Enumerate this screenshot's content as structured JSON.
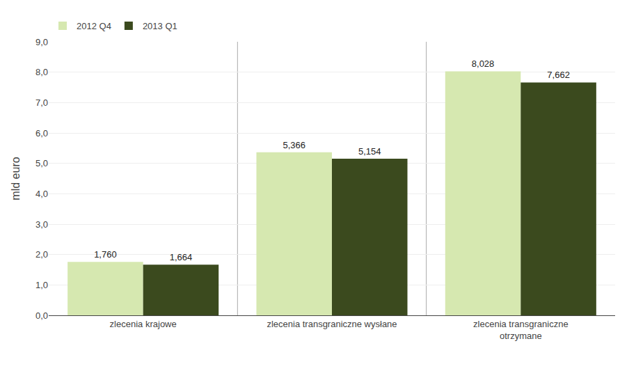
{
  "chart_data": {
    "type": "bar",
    "categories": [
      "zlecenia krajowe",
      "zlecenia transgraniczne wysłane",
      "zlecenia transgraniczne\notrzymane"
    ],
    "series": [
      {
        "name": "2012 Q4",
        "color": "#d6e8b0",
        "values": [
          1.76,
          5.366,
          8.028
        ],
        "value_labels": [
          "1,760",
          "5,366",
          "8,028"
        ]
      },
      {
        "name": "2013 Q1",
        "color": "#3b4a1e",
        "values": [
          1.664,
          5.154,
          7.662
        ],
        "value_labels": [
          "1,664",
          "5,154",
          "7,662"
        ]
      }
    ],
    "ylabel": "mld euro",
    "ylim": [
      0,
      9.0
    ],
    "yticks": [
      {
        "value": 0.0,
        "label": "0,0"
      },
      {
        "value": 1.0,
        "label": "1,0"
      },
      {
        "value": 2.0,
        "label": "2,0"
      },
      {
        "value": 3.0,
        "label": "3,0"
      },
      {
        "value": 4.0,
        "label": "4,0"
      },
      {
        "value": 5.0,
        "label": "5,0"
      },
      {
        "value": 6.0,
        "label": "6,0"
      },
      {
        "value": 7.0,
        "label": "7,0"
      },
      {
        "value": 8.0,
        "label": "8,0"
      },
      {
        "value": 9.0,
        "label": "9,0"
      }
    ],
    "grid": true,
    "legend": "upper left",
    "data_labels": true
  }
}
